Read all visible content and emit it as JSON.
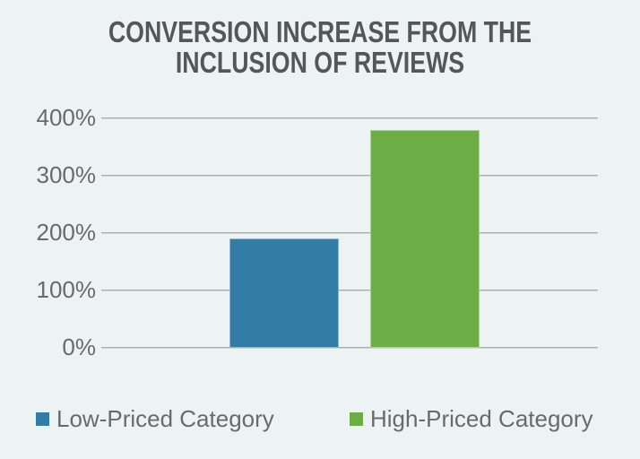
{
  "background_color": "#edf3f3",
  "title": {
    "full": "CONVERSION INCREASE FROM THE INCLUSION OF REVIEWS",
    "lines": [
      "CONVERSION INCREASE FROM THE",
      "INCLUSION OF REVIEWS"
    ],
    "color": "#54565a"
  },
  "chart_data": {
    "type": "bar",
    "title": "CONVERSION INCREASE FROM THE INCLUSION OF REVIEWS",
    "categories": [
      "Low-Priced Category",
      "High-Priced Category"
    ],
    "values": [
      190,
      380
    ],
    "value_unit": "%",
    "colors": [
      "#337ca6",
      "#6cad45"
    ],
    "xlabel": "",
    "ylabel": "",
    "ylim": [
      0,
      400
    ],
    "yticks": [
      0,
      100,
      200,
      300,
      400
    ],
    "ytick_labels": [
      "0%",
      "100%",
      "200%",
      "300%",
      "400%"
    ],
    "grid": true,
    "gridline_color": "#a6aeae",
    "tick_label_color": "#696a6e",
    "title_color": "#54565a",
    "legend_position": "bottom",
    "legend": [
      {
        "label": "Low-Priced Category",
        "color": "#337ca6"
      },
      {
        "label": "High-Priced Category",
        "color": "#6cad45"
      }
    ]
  }
}
